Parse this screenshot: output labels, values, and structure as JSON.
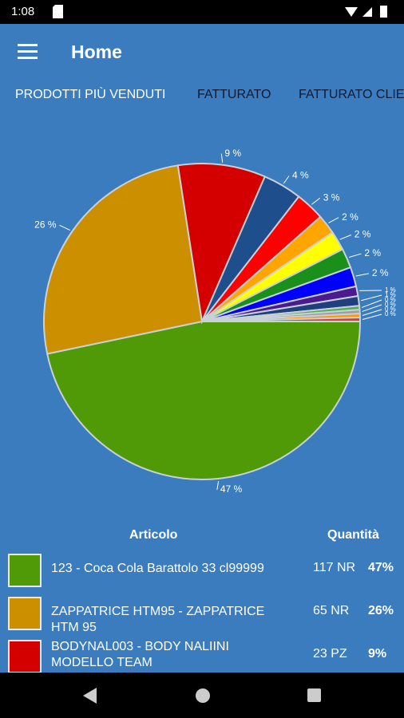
{
  "status_bar": {
    "time": "1:08"
  },
  "app_bar": {
    "title": "Home"
  },
  "tabs": [
    "PRODOTTI PIÙ VENDUTI",
    "FATTURATO",
    "FATTURATO CLIE"
  ],
  "chart_data": {
    "type": "pie",
    "values": [
      47,
      26,
      9,
      4,
      3,
      2,
      2,
      2,
      2,
      1,
      1,
      0.4,
      0.4,
      0.4,
      0.4
    ],
    "value_labels": [
      "47 %",
      "26 %",
      "9 %",
      "4 %",
      "3 %",
      "2 %",
      "2 %",
      "2 %",
      "2 %",
      "1 %",
      "1 %",
      "0 %",
      "0 %",
      "0 %",
      "0 %"
    ],
    "colors": [
      "#4f9a06",
      "#cc8f00",
      "#d40000",
      "#1f4e8c",
      "#ff0000",
      "#ffa500",
      "#ffff00",
      "#1a8f1a",
      "#0000ff",
      "#4b1a8f",
      "#1f3f7f",
      "#4caf50",
      "#9e9e9e",
      "#ff9800",
      "#e53935"
    ]
  },
  "table": {
    "headers": [
      "Articolo",
      "Quantità"
    ],
    "rows": [
      {
        "name": "123 - Coca Cola Barattolo 33 cl99999",
        "quantity": "117 NR",
        "percent": "47%"
      },
      {
        "name": "ZAPPATRICE HTM95 - ZAPPATRICE HTM 95",
        "quantity": "65 NR",
        "percent": "26%"
      },
      {
        "name": "BODYNAL003 - BODY NALIINI MODELLO TEAM",
        "quantity": "23 PZ",
        "percent": "9%"
      }
    ]
  }
}
